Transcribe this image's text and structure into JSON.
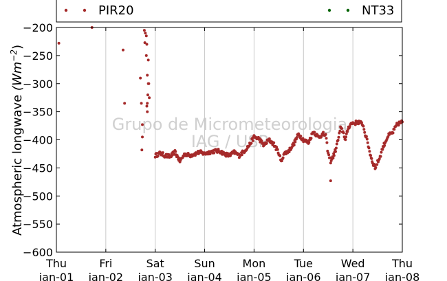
{
  "chart_data": {
    "type": "scatter",
    "ylabel": "Atmospheric longwave",
    "ylabel_units": {
      "base": "(Wm",
      "exponent": "−2",
      "close": ")"
    },
    "ylim": [
      -600,
      -200
    ],
    "yticks": [
      -200,
      -250,
      -300,
      -350,
      -400,
      -450,
      -500,
      -550,
      -600
    ],
    "ytick_labels": [
      "−200",
      "−250",
      "−300",
      "−350",
      "−400",
      "−450",
      "−500",
      "−550",
      "−600"
    ],
    "xlim_days": [
      0,
      7
    ],
    "xticks": [
      {
        "day": "Thu",
        "date": "jan-01"
      },
      {
        "day": "Fri",
        "date": "jan-02"
      },
      {
        "day": "Sat",
        "date": "jan-03"
      },
      {
        "day": "Sun",
        "date": "jan-04"
      },
      {
        "day": "Mon",
        "date": "jan-05"
      },
      {
        "day": "Tue",
        "date": "jan-06"
      },
      {
        "day": "Wed",
        "date": "jan-07"
      },
      {
        "day": "Thu",
        "date": "jan-08"
      }
    ],
    "grid": "vertical",
    "legend": {
      "placement": "top",
      "entries": [
        "PIR20",
        "NT33"
      ]
    },
    "watermark": [
      "Grupo de Micrometeorologia",
      "IAG / USP"
    ],
    "series": [
      {
        "name": "PIR20",
        "color": "#a52a2a",
        "profile": [
          [
            2.0,
            -428
          ],
          [
            2.1,
            -424
          ],
          [
            2.2,
            -428
          ],
          [
            2.3,
            -430
          ],
          [
            2.4,
            -422
          ],
          [
            2.5,
            -438
          ],
          [
            2.6,
            -425
          ],
          [
            2.7,
            -428
          ],
          [
            2.8,
            -425
          ],
          [
            2.9,
            -422
          ],
          [
            3.0,
            -425
          ],
          [
            3.1,
            -422
          ],
          [
            3.2,
            -420
          ],
          [
            3.3,
            -420
          ],
          [
            3.4,
            -425
          ],
          [
            3.5,
            -428
          ],
          [
            3.6,
            -422
          ],
          [
            3.7,
            -428
          ],
          [
            3.8,
            -420
          ],
          [
            3.9,
            -410
          ],
          [
            4.0,
            -395
          ],
          [
            4.1,
            -398
          ],
          [
            4.2,
            -410
          ],
          [
            4.3,
            -400
          ],
          [
            4.4,
            -408
          ],
          [
            4.5,
            -423
          ],
          [
            4.55,
            -440
          ],
          [
            4.6,
            -425
          ],
          [
            4.7,
            -420
          ],
          [
            4.8,
            -408
          ],
          [
            4.9,
            -390
          ],
          [
            5.0,
            -400
          ],
          [
            5.1,
            -405
          ],
          [
            5.2,
            -385
          ],
          [
            5.3,
            -395
          ],
          [
            5.4,
            -390
          ],
          [
            5.45,
            -392
          ],
          [
            5.5,
            -425
          ],
          [
            5.55,
            -438
          ],
          [
            5.6,
            -430
          ],
          [
            5.65,
            -418
          ],
          [
            5.7,
            -400
          ],
          [
            5.75,
            -380
          ],
          [
            5.8,
            -385
          ],
          [
            5.85,
            -400
          ],
          [
            5.9,
            -380
          ],
          [
            5.95,
            -372
          ],
          [
            6.0,
            -370
          ],
          [
            6.05,
            -370
          ],
          [
            6.1,
            -368
          ],
          [
            6.2,
            -372
          ],
          [
            6.25,
            -390
          ],
          [
            6.3,
            -405
          ],
          [
            6.35,
            -425
          ],
          [
            6.4,
            -440
          ],
          [
            6.45,
            -450
          ],
          [
            6.5,
            -440
          ],
          [
            6.55,
            -430
          ],
          [
            6.6,
            -415
          ],
          [
            6.65,
            -405
          ],
          [
            6.7,
            -395
          ],
          [
            6.75,
            -390
          ],
          [
            6.8,
            -388
          ],
          [
            6.85,
            -380
          ],
          [
            6.9,
            -372
          ],
          [
            6.95,
            -370
          ],
          [
            7.0,
            -368
          ]
        ],
        "outliers": [
          [
            0.05,
            -228
          ],
          [
            0.72,
            -200
          ],
          [
            1.35,
            -240
          ],
          [
            1.38,
            -335
          ],
          [
            1.7,
            -290
          ],
          [
            1.72,
            -335
          ],
          [
            1.74,
            -373
          ],
          [
            1.74,
            -395
          ],
          [
            1.73,
            -418
          ],
          [
            1.78,
            -205
          ],
          [
            1.8,
            -210
          ],
          [
            1.79,
            -227
          ],
          [
            1.82,
            -215
          ],
          [
            1.83,
            -230
          ],
          [
            1.82,
            -250
          ],
          [
            1.86,
            -258
          ],
          [
            1.84,
            -285
          ],
          [
            1.87,
            -300
          ],
          [
            1.85,
            -320
          ],
          [
            1.84,
            -335
          ],
          [
            1.83,
            -340
          ],
          [
            1.88,
            -325
          ],
          [
            1.84,
            -350
          ],
          [
            1.86,
            -300
          ],
          [
            5.55,
            -473
          ]
        ]
      },
      {
        "name": "NT33",
        "color": "#006400",
        "profile": [],
        "outliers": []
      }
    ]
  }
}
